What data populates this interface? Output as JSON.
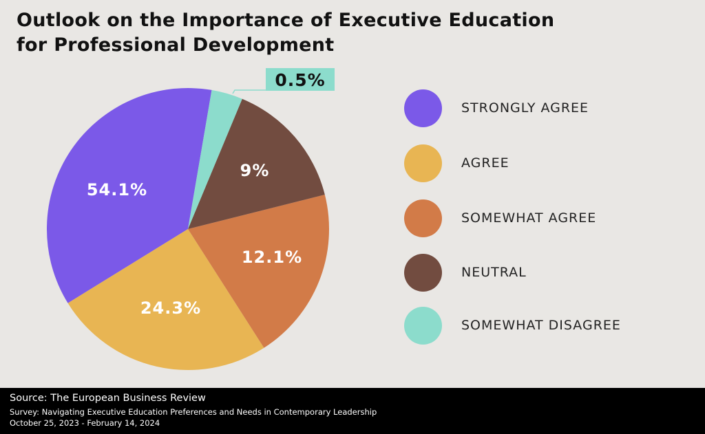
{
  "chart_data": {
    "type": "pie",
    "title": "Outlook on the Importance of Executive Education for Professional Development",
    "title_lines": [
      "Outlook on the Importance of Executive Education",
      "for Professional Development"
    ],
    "categories": [
      "STRONGLY AGREE",
      "AGREE",
      "SOMEWHAT AGREE",
      "NEUTRAL",
      "SOMEWHAT DISAGREE"
    ],
    "values": [
      54.1,
      24.3,
      12.1,
      9,
      0.5
    ],
    "data_labels": [
      "54.1%",
      "24.3%",
      "12.1%",
      "9%",
      "0.5%"
    ],
    "colors": [
      "#7b59e8",
      "#e8b553",
      "#d27b48",
      "#724c40",
      "#8cdccc"
    ],
    "legend_position": "right"
  },
  "footer": {
    "source": "Source: The European Business Review",
    "survey": "Survey: Navigating Executive Education Preferences and Needs in Contemporary Leadership",
    "dates": "October 25, 2023 - February 14, 2024"
  }
}
